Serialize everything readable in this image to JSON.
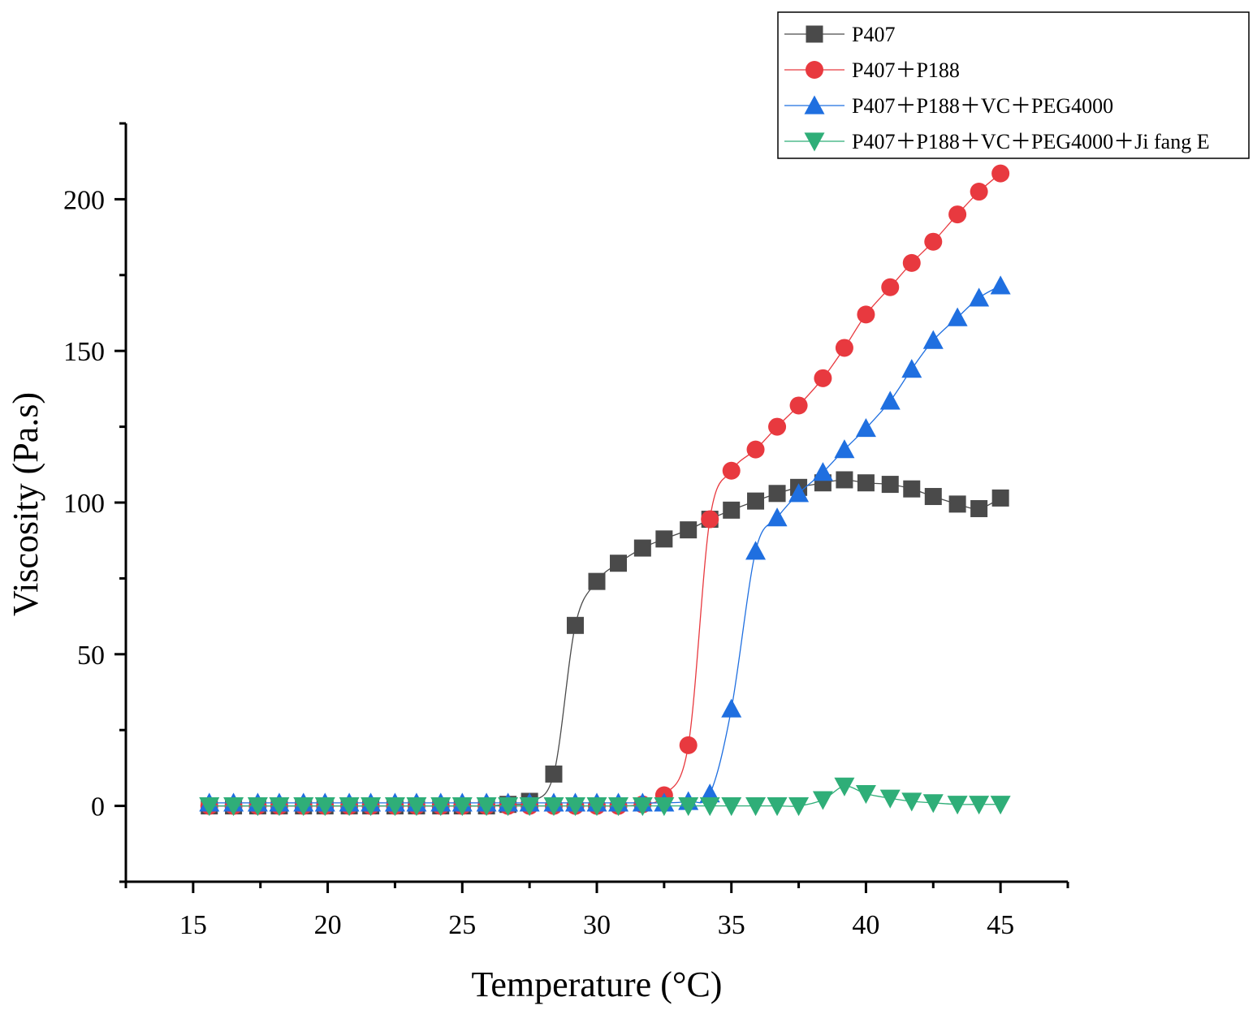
{
  "chart_data": {
    "type": "line",
    "title": "",
    "xlabel": "Temperature (°C)",
    "ylabel": "Viscosity (Pa.s)",
    "xlim": [
      12.5,
      47.5
    ],
    "ylim": [
      -25,
      225
    ],
    "xticks": [
      15,
      20,
      25,
      30,
      35,
      40,
      45
    ],
    "yticks": [
      0,
      50,
      100,
      150,
      200
    ],
    "xtick_labels": [
      "15",
      "20",
      "25",
      "30",
      "35",
      "40",
      "45"
    ],
    "ytick_labels": [
      "0",
      "50",
      "100",
      "150",
      "200"
    ],
    "grid": false,
    "legend_position": "top-right",
    "series": [
      {
        "name": "P407",
        "color": "#4a4a4a",
        "marker": "square",
        "x": [
          15.6,
          16.5,
          17.4,
          18.2,
          19.1,
          19.9,
          20.8,
          21.6,
          22.5,
          23.3,
          24.2,
          25.0,
          25.9,
          26.7,
          27.5,
          28.4,
          29.2,
          30.0,
          30.8,
          31.7,
          32.5,
          33.4,
          34.2,
          35.0,
          35.9,
          36.7,
          37.5,
          38.4,
          39.2,
          40.0,
          40.9,
          41.7,
          42.5,
          43.4,
          44.2,
          45.0
        ],
        "y": [
          0,
          0,
          0,
          0,
          0,
          0,
          0,
          0,
          0,
          0,
          0,
          0,
          0,
          0.5,
          1.5,
          10.5,
          59.5,
          74,
          80,
          85,
          88,
          91,
          94.5,
          97.5,
          100.5,
          103,
          105,
          106.5,
          107.5,
          106.5,
          106,
          104.5,
          102,
          99.5,
          98,
          101.5
        ]
      },
      {
        "name": "P407＋P188",
        "color": "#e8393f",
        "marker": "circle",
        "x": [
          15.6,
          16.5,
          17.4,
          18.2,
          19.1,
          19.9,
          20.8,
          21.6,
          22.5,
          23.3,
          24.2,
          25.0,
          25.9,
          26.7,
          27.5,
          28.4,
          29.2,
          30.0,
          30.8,
          31.7,
          32.5,
          33.4,
          34.2,
          35.0,
          35.9,
          36.7,
          37.5,
          38.4,
          39.2,
          40.0,
          40.9,
          41.7,
          42.5,
          43.4,
          44.2,
          45.0
        ],
        "y": [
          0,
          0,
          0,
          0,
          0,
          0,
          0,
          0,
          0,
          0,
          0,
          0,
          0,
          0,
          0,
          0,
          0,
          0,
          0,
          0.5,
          3.5,
          20,
          94.5,
          110.5,
          117.5,
          125,
          132,
          141,
          151,
          162,
          171,
          179,
          186,
          195,
          202.5,
          208.5
        ]
      },
      {
        "name": "P407＋P188＋VC＋PEG4000",
        "color": "#1f6fe0",
        "marker": "triangle-up",
        "x": [
          15.6,
          16.5,
          17.4,
          18.2,
          19.1,
          19.9,
          20.8,
          21.6,
          22.5,
          23.3,
          24.2,
          25.0,
          25.9,
          26.7,
          27.5,
          28.4,
          29.2,
          30.0,
          30.8,
          31.7,
          32.5,
          33.4,
          34.2,
          35.0,
          35.9,
          36.7,
          37.5,
          38.4,
          39.2,
          40.0,
          40.9,
          41.7,
          42.5,
          43.4,
          44.2,
          45.0
        ],
        "y": [
          1,
          1,
          1,
          1,
          1,
          1,
          1,
          1,
          1,
          1,
          1,
          1,
          1,
          1,
          1,
          1,
          1,
          1,
          1,
          1,
          1,
          1.5,
          4,
          32,
          84,
          95,
          103,
          110,
          117.5,
          124.5,
          133.5,
          144,
          153.5,
          161,
          167.5,
          171.5
        ]
      },
      {
        "name": "P407＋P188＋VC＋PEG4000＋Ji fang E",
        "color": "#2fae78",
        "marker": "triangle-down",
        "x": [
          15.6,
          16.5,
          17.4,
          18.2,
          19.1,
          19.9,
          20.8,
          21.6,
          22.5,
          23.3,
          24.2,
          25.0,
          25.9,
          26.7,
          27.5,
          28.4,
          29.2,
          30.0,
          30.8,
          31.7,
          32.5,
          33.4,
          34.2,
          35.0,
          35.9,
          36.7,
          37.5,
          38.4,
          39.2,
          40.0,
          40.9,
          41.7,
          42.5,
          43.4,
          44.2,
          45.0
        ],
        "y": [
          0,
          0,
          0,
          0,
          0,
          0,
          0,
          0,
          0,
          0,
          0,
          0,
          0,
          0,
          0,
          0,
          0,
          0,
          0,
          0,
          0,
          0,
          0,
          0,
          0,
          0,
          0,
          2,
          6.5,
          4,
          2.5,
          1.5,
          1,
          0.5,
          0.5,
          0.5
        ]
      }
    ]
  }
}
